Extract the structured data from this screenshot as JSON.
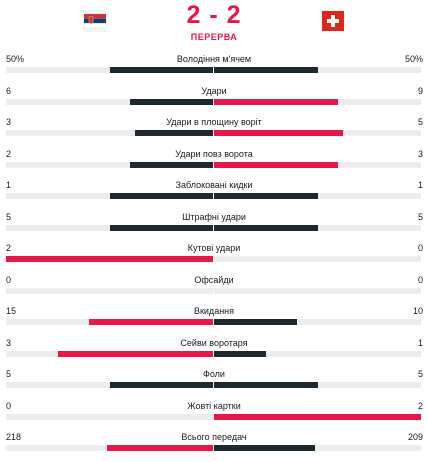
{
  "match": {
    "score": "2 - 2",
    "status": "ПЕРЕРВА",
    "home_team": {
      "flag": "serbia-flag-icon"
    },
    "away_team": {
      "flag": "switzerland-flag-icon"
    }
  },
  "colors": {
    "leader": "#e8174a",
    "trailer": "#1f2a30",
    "track": "#ececec"
  },
  "stats": [
    {
      "label": "Володіння м'ячем",
      "home": "50%",
      "away": "50%",
      "home_value": 50,
      "away_value": 50
    },
    {
      "label": "Удари",
      "home": "6",
      "away": "9",
      "home_value": 6,
      "away_value": 9
    },
    {
      "label": "Удари в площину воріт",
      "home": "3",
      "away": "5",
      "home_value": 3,
      "away_value": 5
    },
    {
      "label": "Удари повз ворота",
      "home": "2",
      "away": "3",
      "home_value": 2,
      "away_value": 3
    },
    {
      "label": "Заблоковані кидки",
      "home": "1",
      "away": "1",
      "home_value": 1,
      "away_value": 1
    },
    {
      "label": "Штрафні удари",
      "home": "5",
      "away": "5",
      "home_value": 5,
      "away_value": 5
    },
    {
      "label": "Кутові удари",
      "home": "2",
      "away": "0",
      "home_value": 2,
      "away_value": 0
    },
    {
      "label": "Офсайди",
      "home": "0",
      "away": "0",
      "home_value": 0,
      "away_value": 0
    },
    {
      "label": "Вкидання",
      "home": "15",
      "away": "10",
      "home_value": 15,
      "away_value": 10
    },
    {
      "label": "Сейви воротаря",
      "home": "3",
      "away": "1",
      "home_value": 3,
      "away_value": 1
    },
    {
      "label": "Фоли",
      "home": "5",
      "away": "5",
      "home_value": 5,
      "away_value": 5
    },
    {
      "label": "Жовті картки",
      "home": "0",
      "away": "2",
      "home_value": 0,
      "away_value": 2
    },
    {
      "label": "Всього передач",
      "home": "218",
      "away": "209",
      "home_value": 218,
      "away_value": 209
    }
  ]
}
